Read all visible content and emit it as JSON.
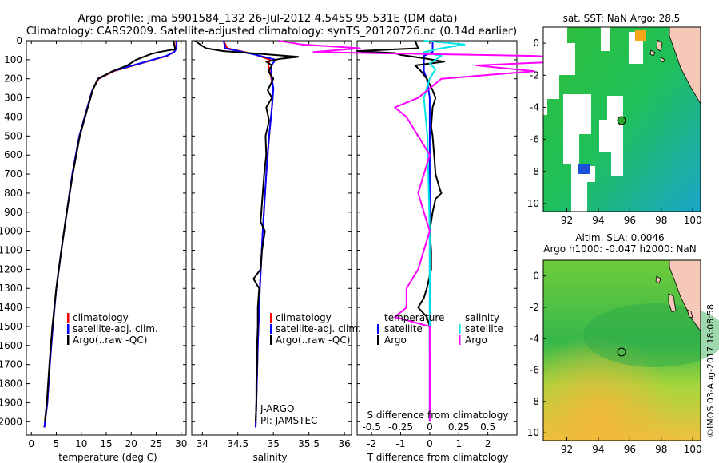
{
  "title": {
    "line1": "Argo profile: jma 5901584_132 26-Jul-2012 4.545S 95.531E (DM data)",
    "line2": "Climatology: CARS2009. Satellite-adjusted climatology: synTS_20120726.nc (0.14d earlier)"
  },
  "colors": {
    "climatology": "#ff0000",
    "satellite": "#0000ff",
    "argo": "#000000",
    "argo_sal": "#ff00ff",
    "sat_sal": "#00e5e5"
  },
  "yaxis_ticks": [
    0,
    100,
    200,
    300,
    400,
    500,
    600,
    700,
    800,
    900,
    1000,
    1100,
    1200,
    1300,
    1400,
    1500,
    1600,
    1700,
    1800,
    1900,
    2000
  ],
  "legends": {
    "temp": [
      "climatology",
      "satellite-adj. clim.",
      "Argo(..raw -QC)"
    ],
    "sal": [
      "climatology",
      "satellite-adj. clim.",
      "Argo(..raw -QC)"
    ],
    "diff_titles": [
      "temperature",
      "salinity"
    ],
    "diff_entries": [
      "satellite",
      "Argo",
      "satellite",
      "Argo"
    ]
  },
  "sal_note": [
    "J-ARGO",
    "PI: JAMSTEC"
  ],
  "map1_title": "sat. SST: NaN Argo: 28.5",
  "map2_title": [
    "Altim. SLA: 0.0046",
    "Argo h1000: -0.047 h2000: NaN"
  ],
  "watermark": "©IMOS 03-Aug-2017 18:08:58",
  "chart_data": [
    {
      "type": "line",
      "name": "temperature",
      "xlabel": "temperature (deg C)",
      "ylabel": "",
      "xlim": [
        -1,
        31
      ],
      "ylim": [
        2070,
        0
      ],
      "xticks": [
        "0",
        "5",
        "10",
        "15",
        "20",
        "25",
        "30"
      ],
      "series": [
        {
          "name": "climatology",
          "depth": [
            0,
            40,
            60,
            80,
            100,
            130,
            160,
            200,
            260,
            350,
            500,
            700,
            900,
            1100,
            1300,
            1500,
            1700,
            1900,
            2030
          ],
          "values": [
            29,
            29,
            28.5,
            27.2,
            24.5,
            20.5,
            16.5,
            13.5,
            12.2,
            11.2,
            9.6,
            8.2,
            7.1,
            6.0,
            5.0,
            4.3,
            3.7,
            3.2,
            2.6
          ]
        },
        {
          "name": "satellite-adj. clim.",
          "depth": [
            0,
            40,
            60,
            80,
            100,
            130,
            160,
            200,
            260,
            350,
            500,
            700,
            900,
            1100,
            1300,
            1500,
            1700,
            1900,
            2030
          ],
          "values": [
            29.1,
            29.1,
            28.6,
            27,
            24.3,
            20.3,
            16.3,
            13.4,
            12.2,
            11.2,
            9.6,
            8.2,
            7.1,
            6.0,
            5.0,
            4.3,
            3.7,
            3.2,
            2.6
          ]
        },
        {
          "name": "Argo(..raw -QC)",
          "depth": [
            0,
            20,
            45,
            60,
            70,
            80,
            100,
            130,
            160,
            200,
            260,
            350,
            500,
            700,
            900,
            1100,
            1300,
            1500,
            1700,
            1900,
            2000
          ],
          "values": [
            28.5,
            28.6,
            28.8,
            25.5,
            24,
            23,
            21,
            19.2,
            16.3,
            13.3,
            12.3,
            11.3,
            9.7,
            8.3,
            7.1,
            6.0,
            5.0,
            4.2,
            3.6,
            3.1,
            2.7
          ]
        }
      ]
    },
    {
      "type": "line",
      "name": "salinity",
      "xlabel": "salinity",
      "ylabel": "",
      "xlim": [
        33.85,
        36.1
      ],
      "ylim": [
        2070,
        0
      ],
      "xticks": [
        "34",
        "34.5",
        "35",
        "35.5",
        "36"
      ],
      "series": [
        {
          "name": "climatology",
          "depth": [
            0,
            40,
            70,
            100,
            130,
            180,
            250,
            350,
            500,
            700,
            1000,
            1300,
            1600,
            1900,
            2030
          ],
          "values": [
            34.3,
            34.35,
            34.72,
            34.95,
            34.93,
            34.96,
            35.0,
            34.98,
            34.94,
            34.9,
            34.85,
            34.81,
            34.78,
            34.76,
            34.75
          ]
        },
        {
          "name": "satellite-adj. clim.",
          "depth": [
            0,
            40,
            70,
            100,
            130,
            180,
            250,
            350,
            500,
            700,
            1000,
            1300,
            1600,
            1900,
            2030
          ],
          "values": [
            34.3,
            34.32,
            34.7,
            35.03,
            34.97,
            34.97,
            35.0,
            34.98,
            34.94,
            34.9,
            34.85,
            34.81,
            34.78,
            34.76,
            34.75
          ]
        },
        {
          "name": "Argo(..raw -QC)",
          "depth": [
            0,
            15,
            40,
            55,
            70,
            85,
            95,
            110,
            130,
            160,
            200,
            260,
            300,
            350,
            420,
            500,
            600,
            700,
            800,
            950,
            1000,
            1100,
            1200,
            1250,
            1300,
            1400,
            1500,
            1600,
            1700,
            1800,
            1900,
            2000
          ],
          "values": [
            33.9,
            33.95,
            34.05,
            34.3,
            34.85,
            35.35,
            35.1,
            34.9,
            34.98,
            34.93,
            35.0,
            34.92,
            34.98,
            34.9,
            34.94,
            34.89,
            34.9,
            34.87,
            34.85,
            34.82,
            34.88,
            34.84,
            34.82,
            34.72,
            34.8,
            34.78,
            34.78,
            34.77,
            34.77,
            34.76,
            34.76,
            34.75
          ]
        }
      ]
    },
    {
      "type": "line",
      "name": "difference from climatology",
      "xlabel": "T difference from climatology",
      "xlabel_top": "S difference from climatology",
      "xlim": [
        -2.5,
        3
      ],
      "ylim": [
        2070,
        0
      ],
      "xticks": [
        "-2",
        "-1",
        "0",
        "1",
        "2"
      ],
      "xticks_top": [
        "-0.5",
        "-0.25",
        "0",
        "0.25",
        "0.5"
      ],
      "series": [
        {
          "name": "temperature satellite",
          "depth": [
            0,
            40,
            60,
            80,
            100,
            130,
            160,
            200,
            300,
            500,
            1000,
            2000
          ],
          "values": [
            0.1,
            0.1,
            0.1,
            -0.2,
            -0.2,
            -0.2,
            -0.2,
            -0.1,
            0,
            0,
            0,
            0
          ]
        },
        {
          "name": "temperature Argo",
          "depth": [
            0,
            40,
            55,
            65,
            75,
            90,
            110,
            130,
            160,
            200,
            260,
            300,
            350,
            450,
            500,
            600,
            700,
            780,
            800,
            830,
            900,
            1000,
            1100,
            1200,
            1300,
            1350,
            1400,
            1450,
            1500,
            1600,
            1800,
            2000
          ],
          "values": [
            -0.5,
            -0.4,
            -2.5,
            -1.2,
            -1.0,
            -0.3,
            0.5,
            -0.5,
            -0.3,
            -0.1,
            0.1,
            0.2,
            0.1,
            0.05,
            0.1,
            0.15,
            0.2,
            0.35,
            0.4,
            0.2,
            0.1,
            0,
            0.05,
            0.05,
            -0.1,
            -0.2,
            -0.4,
            -0.1,
            0,
            0,
            0.02,
            0
          ]
        },
        {
          "name": "salinity satellite",
          "depth": [
            0,
            20,
            40,
            60,
            80,
            100,
            120,
            150,
            200,
            300,
            500,
            1000,
            1500,
            2000
          ],
          "values": [
            -0.05,
            0.3,
            0.1,
            -0.05,
            0.1,
            0.05,
            0.0,
            0.05,
            0.0,
            -0.05,
            -0.02,
            0,
            0,
            0
          ]
        },
        {
          "name": "salinity Argo",
          "depth": [
            0,
            20,
            40,
            60,
            80,
            100,
            130,
            160,
            200,
            300,
            350,
            400,
            500,
            600,
            800,
            1000,
            1200,
            1300,
            1400,
            1450,
            1500,
            2000
          ],
          "values": [
            -1.3,
            -1.1,
            -0.6,
            -1.0,
            0.9,
            1.5,
            0.4,
            0.9,
            0.1,
            -0.1,
            -0.3,
            -0.2,
            -0.1,
            0.0,
            -0.1,
            0.0,
            -0.1,
            -0.2,
            -0.2,
            -0.3,
            0,
            0
          ]
        }
      ]
    },
    {
      "type": "heatmap",
      "name": "sat. SST map",
      "xlim": [
        90.5,
        100.5
      ],
      "ylim": [
        -10.5,
        1
      ],
      "xticks": [
        "92",
        "94",
        "96",
        "98",
        "100"
      ],
      "yticks": [
        "0",
        "-2",
        "-4",
        "-6",
        "-8",
        "-10"
      ],
      "argo_position": [
        95.531,
        -4.545
      ]
    },
    {
      "type": "heatmap",
      "name": "SLA map",
      "xlim": [
        90.5,
        100.5
      ],
      "ylim": [
        -10.5,
        1
      ],
      "xticks": [
        "92",
        "94",
        "96",
        "98",
        "100"
      ],
      "yticks": [
        "0",
        "-2",
        "-4",
        "-6",
        "-8",
        "-10"
      ],
      "argo_position": [
        95.531,
        -4.545
      ]
    }
  ]
}
